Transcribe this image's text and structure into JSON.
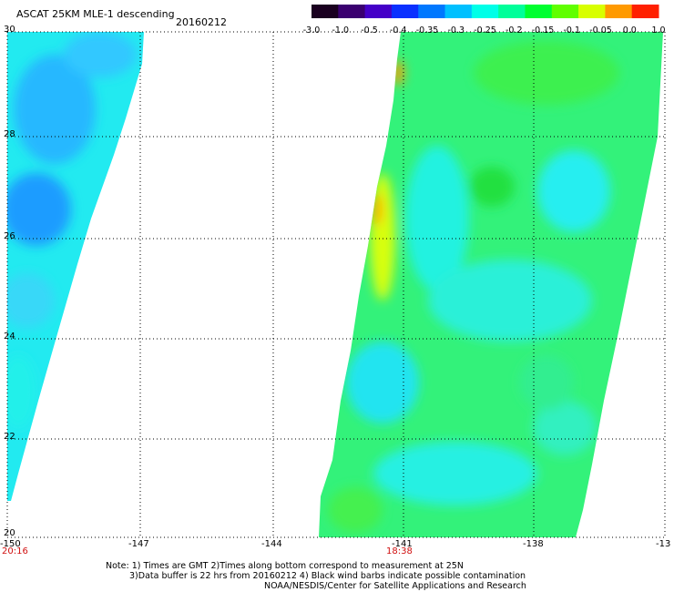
{
  "header": {
    "title": "ASCAT 25KM MLE-1 descending",
    "date": "20160212"
  },
  "colorbar": {
    "labels": [
      "-3.0",
      "-1.0",
      "-0.5",
      "-0.4",
      "-0.35",
      "-0.3",
      "-0.25",
      "-0.2",
      "-0.15",
      "-0.1",
      "-0.05",
      "0.0",
      "1.0"
    ],
    "colors": [
      "#1a0020",
      "#3a0070",
      "#4400c8",
      "#0a30ff",
      "#0078ff",
      "#00c0ff",
      "#00ffe8",
      "#00ff9a",
      "#00ff30",
      "#60ff00",
      "#d8ff00",
      "#ff9a00",
      "#ff2000"
    ]
  },
  "axes": {
    "y_ticks": [
      "30",
      "28",
      "26",
      "24",
      "22",
      "20"
    ],
    "x_ticks": [
      "-150",
      "-147",
      "-144",
      "-141",
      "-138",
      "-13"
    ],
    "time_labels": [
      "20:16",
      "18:38"
    ]
  },
  "notes": {
    "line1": "Note: 1) Times are GMT 2)Times along bottom correspond to measurement at 25N",
    "line2": "3)Data buffer is 22 hrs from 20160212 4) Black wind barbs indicate possible contamination",
    "line3": "NOAA/NESDIS/Center for Satellite Applications and Research"
  },
  "swaths": [
    {
      "name": "west-swath",
      "dominant_color": "cyan-blue"
    },
    {
      "name": "east-swath",
      "dominant_color": "green-cyan"
    }
  ]
}
